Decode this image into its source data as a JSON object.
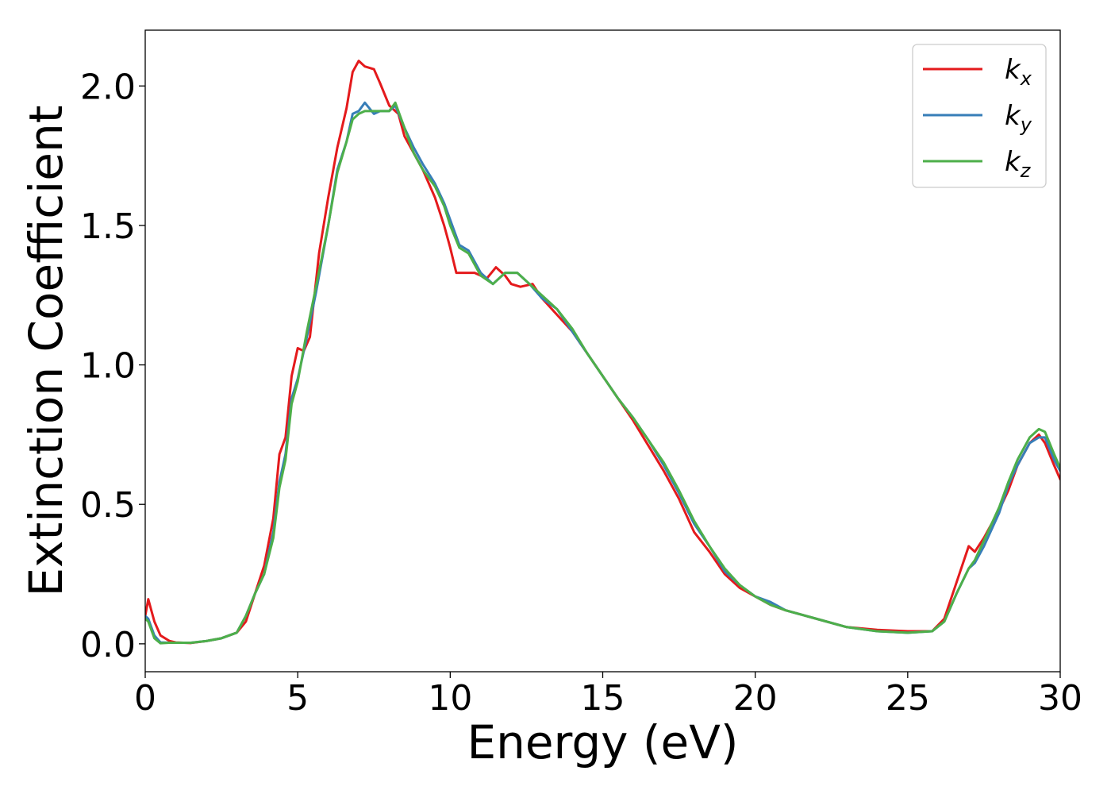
{
  "chart_data": {
    "type": "line",
    "xlabel": "Energy (eV)",
    "ylabel": "Extinction Coefficient",
    "xlim": [
      0,
      30
    ],
    "ylim": [
      -0.1,
      2.2
    ],
    "xticks": [
      0,
      5,
      10,
      15,
      20,
      25,
      30
    ],
    "xtick_labels": [
      "0",
      "5",
      "10",
      "15",
      "20",
      "25",
      "30"
    ],
    "yticks": [
      0.0,
      0.5,
      1.0,
      1.5,
      2.0
    ],
    "ytick_labels": [
      "0.0",
      "0.5",
      "1.0",
      "1.5",
      "2.0"
    ],
    "grid": false,
    "legend_position": "top-right",
    "series": [
      {
        "name": "k_x",
        "base": "k",
        "subscript": "x",
        "color": "#e41a1c",
        "points": [
          [
            0,
            0.1
          ],
          [
            0.1,
            0.16
          ],
          [
            0.3,
            0.08
          ],
          [
            0.5,
            0.03
          ],
          [
            0.8,
            0.01
          ],
          [
            1.0,
            0.005
          ],
          [
            1.5,
            0.003
          ],
          [
            2.0,
            0.01
          ],
          [
            2.5,
            0.02
          ],
          [
            3.0,
            0.04
          ],
          [
            3.3,
            0.08
          ],
          [
            3.6,
            0.18
          ],
          [
            3.9,
            0.28
          ],
          [
            4.2,
            0.45
          ],
          [
            4.4,
            0.68
          ],
          [
            4.6,
            0.74
          ],
          [
            4.8,
            0.96
          ],
          [
            5.0,
            1.06
          ],
          [
            5.2,
            1.05
          ],
          [
            5.4,
            1.1
          ],
          [
            5.7,
            1.4
          ],
          [
            6.0,
            1.6
          ],
          [
            6.3,
            1.78
          ],
          [
            6.6,
            1.92
          ],
          [
            6.8,
            2.05
          ],
          [
            7.0,
            2.09
          ],
          [
            7.2,
            2.07
          ],
          [
            7.5,
            2.06
          ],
          [
            7.7,
            2.01
          ],
          [
            8.0,
            1.93
          ],
          [
            8.3,
            1.9
          ],
          [
            8.5,
            1.82
          ],
          [
            8.8,
            1.76
          ],
          [
            9.1,
            1.7
          ],
          [
            9.5,
            1.6
          ],
          [
            9.8,
            1.5
          ],
          [
            10.0,
            1.42
          ],
          [
            10.2,
            1.33
          ],
          [
            10.5,
            1.33
          ],
          [
            10.8,
            1.33
          ],
          [
            11.2,
            1.31
          ],
          [
            11.5,
            1.35
          ],
          [
            11.8,
            1.32
          ],
          [
            12.0,
            1.29
          ],
          [
            12.3,
            1.28
          ],
          [
            12.7,
            1.29
          ],
          [
            13.0,
            1.24
          ],
          [
            13.5,
            1.18
          ],
          [
            14.0,
            1.12
          ],
          [
            14.5,
            1.04
          ],
          [
            15.0,
            0.96
          ],
          [
            15.5,
            0.88
          ],
          [
            16.0,
            0.8
          ],
          [
            16.5,
            0.71
          ],
          [
            17.0,
            0.62
          ],
          [
            17.5,
            0.52
          ],
          [
            18.0,
            0.4
          ],
          [
            18.5,
            0.33
          ],
          [
            19.0,
            0.25
          ],
          [
            19.5,
            0.2
          ],
          [
            20.0,
            0.17
          ],
          [
            20.5,
            0.14
          ],
          [
            21.0,
            0.12
          ],
          [
            22.0,
            0.09
          ],
          [
            23.0,
            0.06
          ],
          [
            24.0,
            0.05
          ],
          [
            25.0,
            0.045
          ],
          [
            25.8,
            0.045
          ],
          [
            26.2,
            0.09
          ],
          [
            26.6,
            0.22
          ],
          [
            27.0,
            0.35
          ],
          [
            27.2,
            0.33
          ],
          [
            27.5,
            0.38
          ],
          [
            28.0,
            0.48
          ],
          [
            28.3,
            0.55
          ],
          [
            28.6,
            0.64
          ],
          [
            29.0,
            0.72
          ],
          [
            29.3,
            0.75
          ],
          [
            29.5,
            0.72
          ],
          [
            29.8,
            0.64
          ],
          [
            30.0,
            0.59
          ]
        ]
      },
      {
        "name": "k_y",
        "base": "k",
        "subscript": "y",
        "color": "#377eb8",
        "points": [
          [
            0,
            0.1
          ],
          [
            0.1,
            0.09
          ],
          [
            0.3,
            0.03
          ],
          [
            0.5,
            0.005
          ],
          [
            0.8,
            0.004
          ],
          [
            1.5,
            0.004
          ],
          [
            2.0,
            0.01
          ],
          [
            2.5,
            0.02
          ],
          [
            3.0,
            0.04
          ],
          [
            3.3,
            0.1
          ],
          [
            3.6,
            0.18
          ],
          [
            3.9,
            0.25
          ],
          [
            4.2,
            0.4
          ],
          [
            4.4,
            0.58
          ],
          [
            4.6,
            0.68
          ],
          [
            4.8,
            0.88
          ],
          [
            5.0,
            0.95
          ],
          [
            5.3,
            1.1
          ],
          [
            5.6,
            1.26
          ],
          [
            6.0,
            1.5
          ],
          [
            6.3,
            1.7
          ],
          [
            6.6,
            1.8
          ],
          [
            6.8,
            1.9
          ],
          [
            7.0,
            1.91
          ],
          [
            7.2,
            1.94
          ],
          [
            7.5,
            1.9
          ],
          [
            7.7,
            1.91
          ],
          [
            8.0,
            1.91
          ],
          [
            8.2,
            1.93
          ],
          [
            8.5,
            1.85
          ],
          [
            8.8,
            1.78
          ],
          [
            9.1,
            1.72
          ],
          [
            9.5,
            1.65
          ],
          [
            9.8,
            1.58
          ],
          [
            10.0,
            1.52
          ],
          [
            10.3,
            1.43
          ],
          [
            10.6,
            1.41
          ],
          [
            11.0,
            1.33
          ],
          [
            11.4,
            1.29
          ],
          [
            11.8,
            1.33
          ],
          [
            12.2,
            1.33
          ],
          [
            12.6,
            1.29
          ],
          [
            13.0,
            1.24
          ],
          [
            13.5,
            1.2
          ],
          [
            14.0,
            1.12
          ],
          [
            14.5,
            1.04
          ],
          [
            15.0,
            0.96
          ],
          [
            15.5,
            0.88
          ],
          [
            16.0,
            0.81
          ],
          [
            16.5,
            0.73
          ],
          [
            17.0,
            0.64
          ],
          [
            17.5,
            0.54
          ],
          [
            18.0,
            0.43
          ],
          [
            18.5,
            0.35
          ],
          [
            19.0,
            0.26
          ],
          [
            19.5,
            0.21
          ],
          [
            20.0,
            0.17
          ],
          [
            20.5,
            0.15
          ],
          [
            21.0,
            0.12
          ],
          [
            22.0,
            0.09
          ],
          [
            23.0,
            0.06
          ],
          [
            24.0,
            0.045
          ],
          [
            25.0,
            0.04
          ],
          [
            25.8,
            0.045
          ],
          [
            26.2,
            0.08
          ],
          [
            26.6,
            0.18
          ],
          [
            27.0,
            0.27
          ],
          [
            27.2,
            0.29
          ],
          [
            27.5,
            0.35
          ],
          [
            28.0,
            0.47
          ],
          [
            28.3,
            0.57
          ],
          [
            28.6,
            0.64
          ],
          [
            29.0,
            0.72
          ],
          [
            29.3,
            0.74
          ],
          [
            29.5,
            0.74
          ],
          [
            29.8,
            0.66
          ],
          [
            30.0,
            0.62
          ]
        ]
      },
      {
        "name": "k_z",
        "base": "k",
        "subscript": "z",
        "color": "#4daf4a",
        "points": [
          [
            0,
            0.09
          ],
          [
            0.1,
            0.08
          ],
          [
            0.3,
            0.02
          ],
          [
            0.5,
            0.002
          ],
          [
            0.8,
            0.004
          ],
          [
            1.5,
            0.004
          ],
          [
            2.0,
            0.01
          ],
          [
            2.5,
            0.02
          ],
          [
            3.0,
            0.04
          ],
          [
            3.3,
            0.1
          ],
          [
            3.6,
            0.18
          ],
          [
            3.9,
            0.25
          ],
          [
            4.2,
            0.38
          ],
          [
            4.4,
            0.56
          ],
          [
            4.6,
            0.66
          ],
          [
            4.8,
            0.86
          ],
          [
            5.0,
            0.94
          ],
          [
            5.3,
            1.12
          ],
          [
            5.6,
            1.28
          ],
          [
            6.0,
            1.5
          ],
          [
            6.3,
            1.69
          ],
          [
            6.6,
            1.8
          ],
          [
            6.8,
            1.88
          ],
          [
            7.0,
            1.9
          ],
          [
            7.2,
            1.91
          ],
          [
            7.5,
            1.91
          ],
          [
            7.7,
            1.91
          ],
          [
            8.0,
            1.91
          ],
          [
            8.2,
            1.94
          ],
          [
            8.5,
            1.85
          ],
          [
            8.8,
            1.76
          ],
          [
            9.1,
            1.7
          ],
          [
            9.5,
            1.64
          ],
          [
            9.8,
            1.57
          ],
          [
            10.0,
            1.5
          ],
          [
            10.3,
            1.42
          ],
          [
            10.6,
            1.4
          ],
          [
            11.0,
            1.32
          ],
          [
            11.4,
            1.29
          ],
          [
            11.8,
            1.33
          ],
          [
            12.2,
            1.33
          ],
          [
            12.6,
            1.29
          ],
          [
            13.0,
            1.25
          ],
          [
            13.5,
            1.2
          ],
          [
            14.0,
            1.13
          ],
          [
            14.5,
            1.04
          ],
          [
            15.0,
            0.96
          ],
          [
            15.5,
            0.88
          ],
          [
            16.0,
            0.81
          ],
          [
            16.5,
            0.73
          ],
          [
            17.0,
            0.65
          ],
          [
            17.5,
            0.55
          ],
          [
            18.0,
            0.44
          ],
          [
            18.5,
            0.35
          ],
          [
            19.0,
            0.27
          ],
          [
            19.5,
            0.21
          ],
          [
            20.0,
            0.17
          ],
          [
            20.5,
            0.14
          ],
          [
            21.0,
            0.12
          ],
          [
            22.0,
            0.09
          ],
          [
            23.0,
            0.06
          ],
          [
            24.0,
            0.045
          ],
          [
            25.0,
            0.04
          ],
          [
            25.8,
            0.045
          ],
          [
            26.2,
            0.08
          ],
          [
            26.6,
            0.18
          ],
          [
            27.0,
            0.27
          ],
          [
            27.2,
            0.3
          ],
          [
            27.5,
            0.37
          ],
          [
            28.0,
            0.49
          ],
          [
            28.3,
            0.58
          ],
          [
            28.6,
            0.66
          ],
          [
            29.0,
            0.74
          ],
          [
            29.3,
            0.77
          ],
          [
            29.5,
            0.76
          ],
          [
            29.8,
            0.68
          ],
          [
            30.0,
            0.63
          ]
        ]
      }
    ]
  }
}
